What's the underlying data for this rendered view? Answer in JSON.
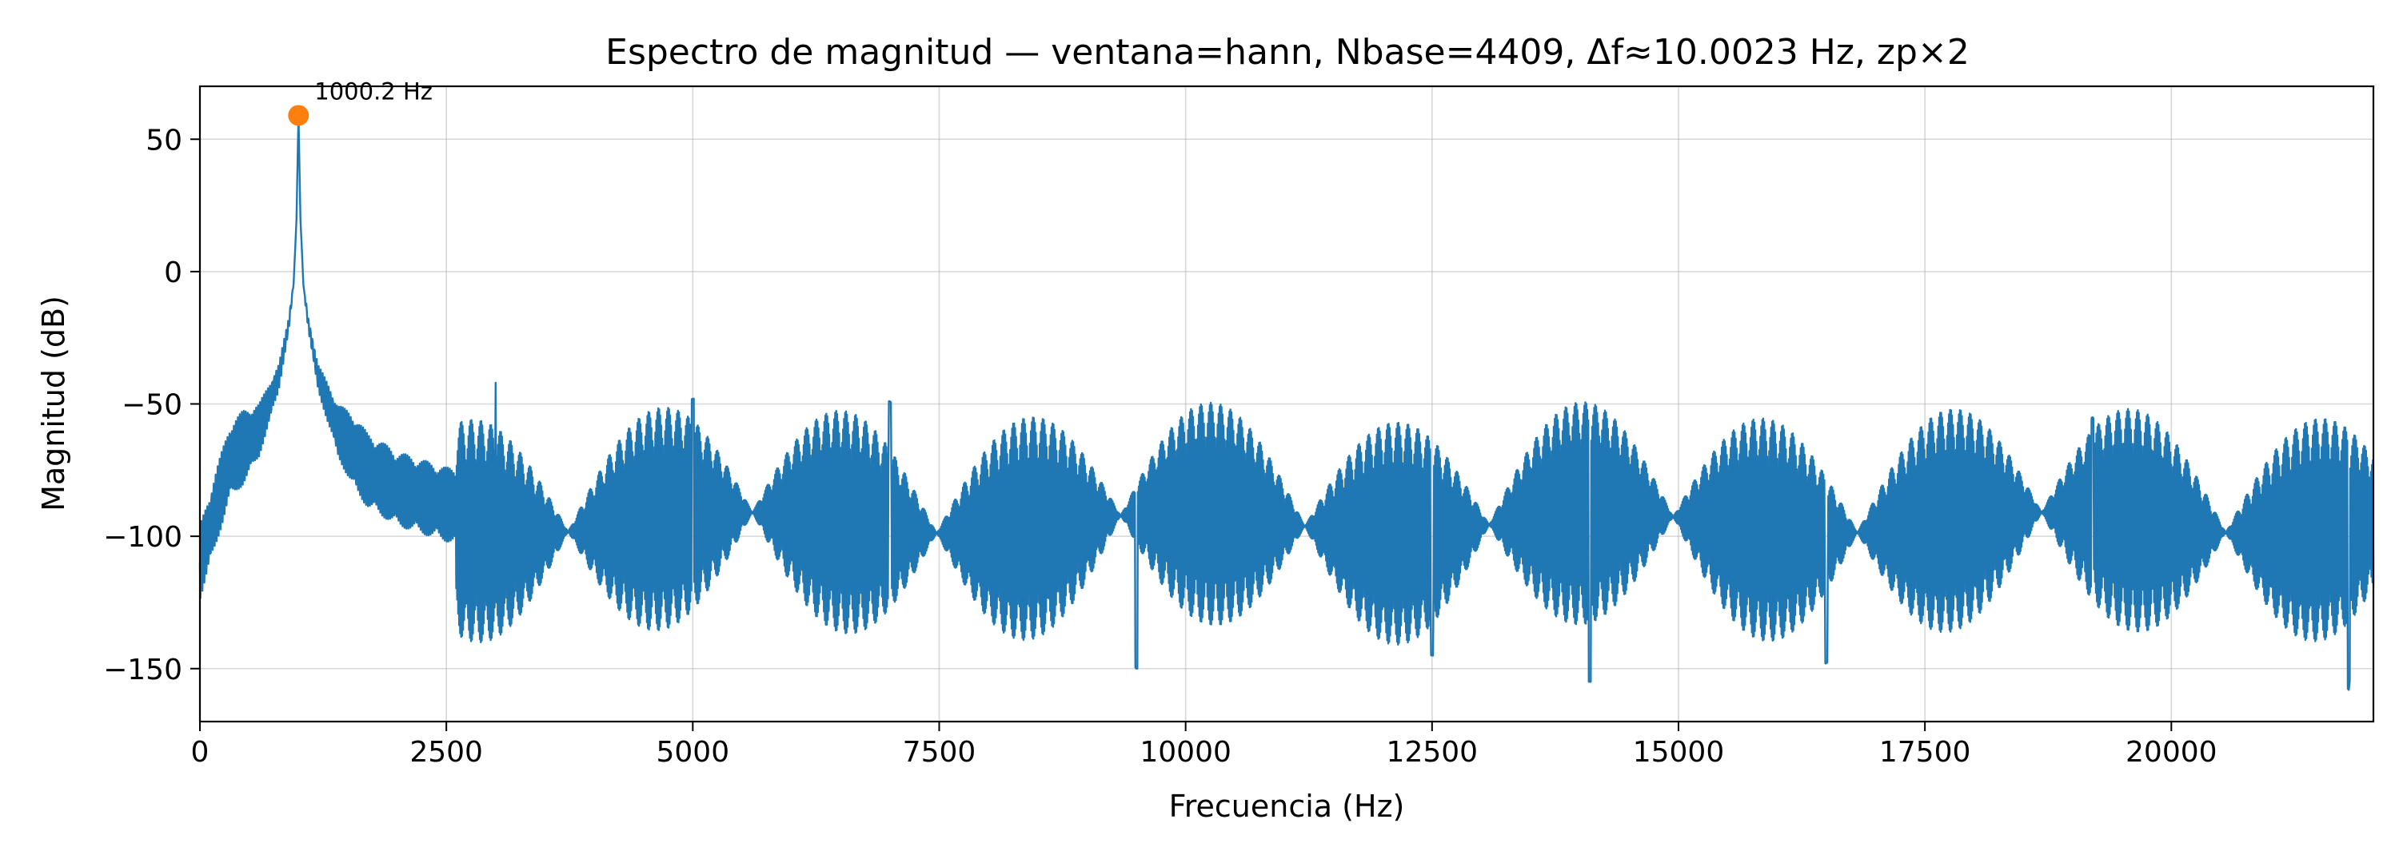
{
  "chart_data": {
    "type": "line",
    "title": "Espectro de magnitud — ventana=hann, Nbase=4409, Δf≈10.0023 Hz, zp×2",
    "xlabel": "Frecuencia (Hz)",
    "ylabel": "Magnitud (dB)",
    "xlim": [
      0,
      22050
    ],
    "ylim": [
      -170,
      70
    ],
    "xticks": [
      0,
      2500,
      5000,
      7500,
      10000,
      12500,
      15000,
      17500,
      20000
    ],
    "xtick_labels": [
      "0",
      "2500",
      "5000",
      "7500",
      "10000",
      "12500",
      "15000",
      "17500",
      "20000"
    ],
    "yticks": [
      50,
      0,
      -50,
      -100,
      -150
    ],
    "ytick_labels": [
      "50",
      "0",
      "−50",
      "−100",
      "−150"
    ],
    "grid": true,
    "series": [
      {
        "color": "#1f77b4",
        "description_points": {
          "x": [
            0,
            300,
            600,
            800,
            900,
            950,
            980,
            1000.2,
            1020,
            1050,
            1100,
            1200,
            1400,
            1700,
            2000,
            2500,
            2990,
            3000,
            3010,
            5000,
            7000,
            9500,
            12500,
            14100,
            16500,
            19200,
            21800,
            22050
          ],
          "y": [
            -110,
            -72,
            -60,
            -40,
            -20,
            -5,
            20,
            59,
            20,
            -5,
            -20,
            -40,
            -60,
            -75,
            -82,
            -88,
            -90,
            -42,
            -90,
            -48,
            -49,
            -150,
            -145,
            -155,
            -148,
            -55,
            -158,
            -80
          ]
        }
      }
    ],
    "peak": {
      "x": 1000.2,
      "y": 59,
      "label": "1000.2 Hz",
      "color": "#ff7f0e"
    }
  }
}
